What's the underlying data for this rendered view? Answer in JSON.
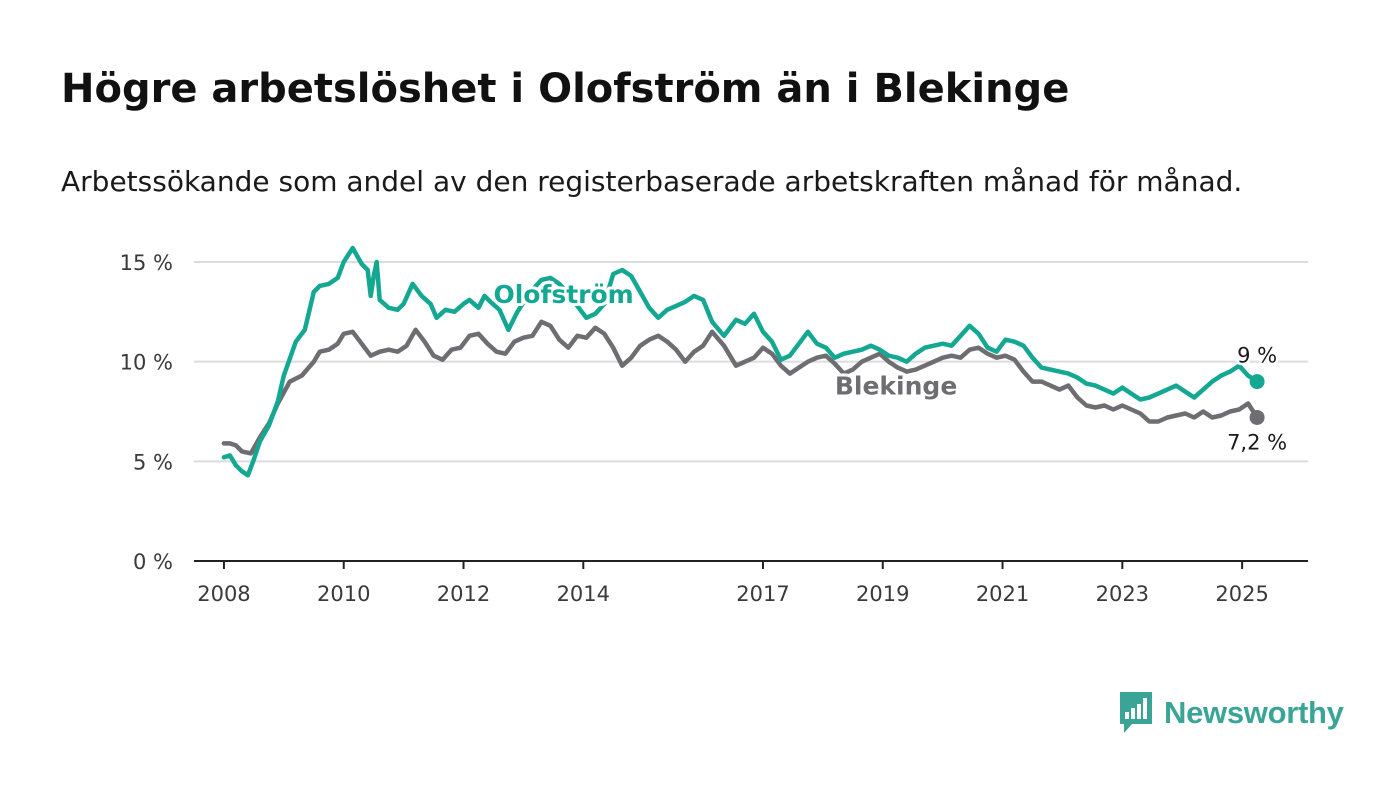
{
  "header": {
    "title": "Högre arbetslöshet i Olofström än i Blekinge",
    "subtitle": "Arbetssökande som andel av den registerbaserade arbetskraften månad för månad."
  },
  "branding": {
    "name": "Newsworthy",
    "color": "#3aa597",
    "icon": "bar-chart-speech-bubble-icon"
  },
  "chart_data": {
    "type": "line",
    "x_unit": "year (decimal)",
    "xlim": [
      2007.5,
      2026.1
    ],
    "ylim": [
      0,
      15
    ],
    "x_ticks": [
      2008,
      2010,
      2012,
      2014,
      2017,
      2019,
      2021,
      2023,
      2025
    ],
    "x_tick_labels": [
      "2008",
      "2010",
      "2012",
      "2014",
      "2017",
      "2019",
      "2021",
      "2023",
      "2025"
    ],
    "y_ticks": [
      0,
      5,
      10,
      15
    ],
    "y_tick_labels": [
      "0 %",
      "5 %",
      "10 %",
      "15 %"
    ],
    "grid": "horizontal",
    "series": [
      {
        "name": "Olofström",
        "color": "#14a893",
        "end_label": "9 %",
        "x": [
          2008.0,
          2008.1,
          2008.2,
          2008.3,
          2008.4,
          2008.5,
          2008.6,
          2008.75,
          2008.9,
          2009.0,
          2009.2,
          2009.35,
          2009.5,
          2009.6,
          2009.75,
          2009.9,
          2010.0,
          2010.15,
          2010.3,
          2010.4,
          2010.45,
          2010.5,
          2010.55,
          2010.6,
          2010.75,
          2010.9,
          2011.0,
          2011.15,
          2011.3,
          2011.45,
          2011.55,
          2011.7,
          2011.85,
          2012.0,
          2012.1,
          2012.25,
          2012.35,
          2012.45,
          2012.6,
          2012.75,
          2012.9,
          2013.05,
          2013.15,
          2013.3,
          2013.45,
          2013.6,
          2013.75,
          2013.9,
          2014.05,
          2014.2,
          2014.35,
          2014.5,
          2014.65,
          2014.8,
          2014.95,
          2015.1,
          2015.25,
          2015.4,
          2015.55,
          2015.7,
          2015.85,
          2016.0,
          2016.15,
          2016.35,
          2016.55,
          2016.7,
          2016.85,
          2017.0,
          2017.15,
          2017.3,
          2017.45,
          2017.6,
          2017.75,
          2017.9,
          2018.05,
          2018.2,
          2018.35,
          2018.5,
          2018.65,
          2018.8,
          2018.95,
          2019.1,
          2019.25,
          2019.4,
          2019.55,
          2019.7,
          2019.85,
          2020.0,
          2020.15,
          2020.3,
          2020.45,
          2020.6,
          2020.75,
          2020.9,
          2021.05,
          2021.2,
          2021.35,
          2021.5,
          2021.65,
          2021.8,
          2021.95,
          2022.1,
          2022.25,
          2022.4,
          2022.55,
          2022.7,
          2022.85,
          2023.0,
          2023.15,
          2023.3,
          2023.45,
          2023.6,
          2023.75,
          2023.9,
          2024.05,
          2024.2,
          2024.35,
          2024.5,
          2024.65,
          2024.8,
          2024.95,
          2025.1,
          2025.25
        ],
        "values": [
          5.2,
          5.3,
          4.8,
          4.5,
          4.3,
          5.1,
          6.0,
          6.8,
          8.0,
          9.3,
          11.0,
          11.6,
          13.5,
          13.8,
          13.9,
          14.2,
          15.0,
          15.7,
          14.9,
          14.6,
          13.3,
          14.3,
          15.0,
          13.1,
          12.7,
          12.6,
          12.9,
          13.9,
          13.3,
          12.9,
          12.2,
          12.6,
          12.5,
          12.9,
          13.1,
          12.7,
          13.3,
          13.0,
          12.6,
          11.6,
          12.5,
          13.2,
          13.6,
          14.1,
          14.2,
          13.9,
          13.4,
          12.8,
          12.2,
          12.4,
          12.9,
          14.4,
          14.6,
          14.3,
          13.5,
          12.7,
          12.2,
          12.6,
          12.8,
          13.0,
          13.3,
          13.1,
          12.0,
          11.3,
          12.1,
          11.9,
          12.4,
          11.5,
          11.0,
          10.1,
          10.3,
          10.9,
          11.5,
          10.9,
          10.7,
          10.2,
          10.4,
          10.5,
          10.6,
          10.8,
          10.6,
          10.3,
          10.2,
          10.0,
          10.4,
          10.7,
          10.8,
          10.9,
          10.8,
          11.3,
          11.8,
          11.4,
          10.7,
          10.5,
          11.1,
          11.0,
          10.8,
          10.2,
          9.7,
          9.6,
          9.5,
          9.4,
          9.2,
          8.9,
          8.8,
          8.6,
          8.4,
          8.7,
          8.4,
          8.1,
          8.2,
          8.4,
          8.6,
          8.8,
          8.5,
          8.2,
          8.6,
          9.0,
          9.3,
          9.5,
          9.8,
          9.3,
          9.0
        ]
      },
      {
        "name": "Blekinge",
        "color": "#6e6e72",
        "end_label": "7,2 %",
        "x": [
          2008.0,
          2008.1,
          2008.2,
          2008.3,
          2008.45,
          2008.6,
          2008.75,
          2008.9,
          2009.1,
          2009.3,
          2009.5,
          2009.6,
          2009.75,
          2009.9,
          2010.0,
          2010.15,
          2010.3,
          2010.45,
          2010.6,
          2010.75,
          2010.9,
          2011.05,
          2011.2,
          2011.35,
          2011.5,
          2011.65,
          2011.8,
          2011.95,
          2012.1,
          2012.25,
          2012.4,
          2012.55,
          2012.7,
          2012.85,
          2013.0,
          2013.15,
          2013.3,
          2013.45,
          2013.6,
          2013.75,
          2013.9,
          2014.05,
          2014.2,
          2014.35,
          2014.5,
          2014.65,
          2014.8,
          2014.95,
          2015.1,
          2015.25,
          2015.4,
          2015.55,
          2015.7,
          2015.85,
          2016.0,
          2016.15,
          2016.35,
          2016.55,
          2016.7,
          2016.85,
          2017.0,
          2017.15,
          2017.3,
          2017.45,
          2017.6,
          2017.75,
          2017.9,
          2018.05,
          2018.2,
          2018.35,
          2018.5,
          2018.65,
          2018.8,
          2018.95,
          2019.1,
          2019.25,
          2019.4,
          2019.55,
          2019.7,
          2019.85,
          2020.0,
          2020.15,
          2020.3,
          2020.45,
          2020.6,
          2020.75,
          2020.9,
          2021.05,
          2021.2,
          2021.35,
          2021.5,
          2021.65,
          2021.8,
          2021.95,
          2022.1,
          2022.25,
          2022.4,
          2022.55,
          2022.7,
          2022.85,
          2023.0,
          2023.15,
          2023.3,
          2023.45,
          2023.6,
          2023.75,
          2023.9,
          2024.05,
          2024.2,
          2024.35,
          2024.5,
          2024.65,
          2024.8,
          2024.95,
          2025.1,
          2025.25
        ],
        "values": [
          5.9,
          5.9,
          5.8,
          5.5,
          5.4,
          6.2,
          6.9,
          7.9,
          9.0,
          9.3,
          10.0,
          10.5,
          10.6,
          10.9,
          11.4,
          11.5,
          10.9,
          10.3,
          10.5,
          10.6,
          10.5,
          10.8,
          11.6,
          11.0,
          10.3,
          10.1,
          10.6,
          10.7,
          11.3,
          11.4,
          10.9,
          10.5,
          10.4,
          11.0,
          11.2,
          11.3,
          12.0,
          11.8,
          11.1,
          10.7,
          11.3,
          11.2,
          11.7,
          11.4,
          10.7,
          9.8,
          10.2,
          10.8,
          11.1,
          11.3,
          11.0,
          10.6,
          10.0,
          10.5,
          10.8,
          11.5,
          10.8,
          9.8,
          10.0,
          10.2,
          10.7,
          10.4,
          9.8,
          9.4,
          9.7,
          10.0,
          10.2,
          10.3,
          9.9,
          9.4,
          9.6,
          10.0,
          10.2,
          10.4,
          10.0,
          9.7,
          9.5,
          9.6,
          9.8,
          10.0,
          10.2,
          10.3,
          10.2,
          10.6,
          10.7,
          10.4,
          10.2,
          10.3,
          10.1,
          9.5,
          9.0,
          9.0,
          8.8,
          8.6,
          8.8,
          8.2,
          7.8,
          7.7,
          7.8,
          7.6,
          7.8,
          7.6,
          7.4,
          7.0,
          7.0,
          7.2,
          7.3,
          7.4,
          7.2,
          7.5,
          7.2,
          7.3,
          7.5,
          7.6,
          7.9,
          7.2
        ]
      }
    ]
  }
}
